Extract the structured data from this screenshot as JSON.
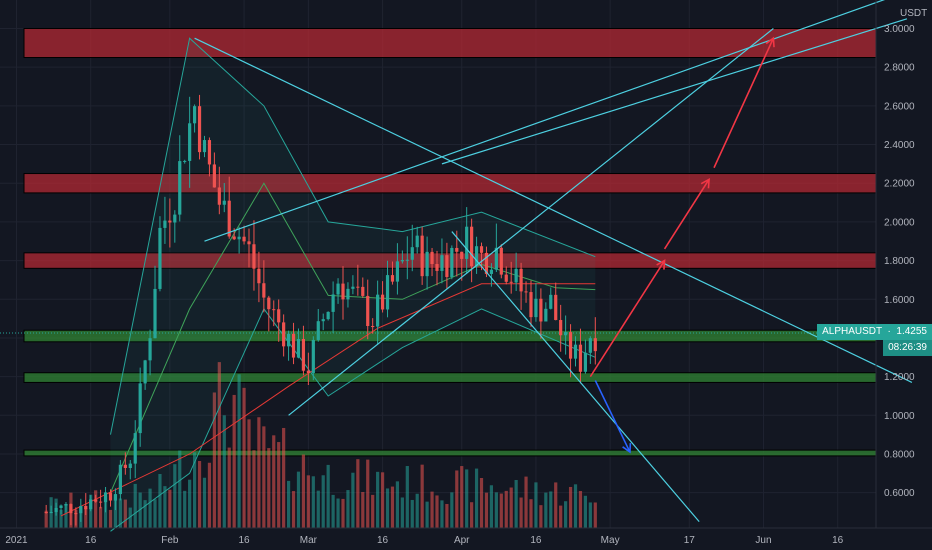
{
  "chart_data": {
    "type": "candlestick",
    "symbol": "ALPHAUSDT",
    "currency": "USDT",
    "last_price": "1.4255",
    "countdown": "08:26:39",
    "x_start": "2021-01-01",
    "y_axis": {
      "min": 0.45,
      "max": 3.1,
      "ticks": [
        "3.0000",
        "2.8000",
        "2.6000",
        "2.4000",
        "2.2000",
        "2.0000",
        "1.8000",
        "1.6000",
        "1.4000",
        "1.2000",
        "1.0000",
        "0.8000",
        "0.6000"
      ]
    },
    "x_ticks": [
      {
        "label": "2021",
        "date": "2021-01-01"
      },
      {
        "label": "16",
        "date": "2021-01-16"
      },
      {
        "label": "Feb",
        "date": "2021-02-01"
      },
      {
        "label": "16",
        "date": "2021-02-16"
      },
      {
        "label": "Mar",
        "date": "2021-03-01"
      },
      {
        "label": "16",
        "date": "2021-03-16"
      },
      {
        "label": "Apr",
        "date": "2021-04-01"
      },
      {
        "label": "16",
        "date": "2021-04-16"
      },
      {
        "label": "May",
        "date": "2021-05-01"
      },
      {
        "label": "17",
        "date": "2021-05-17"
      },
      {
        "label": "Jun",
        "date": "2021-06-01"
      },
      {
        "label": "16",
        "date": "2021-06-16"
      }
    ],
    "price_path": [
      [
        "2021-01-07",
        0.5
      ],
      [
        "2021-01-14",
        0.54
      ],
      [
        "2021-01-20",
        0.6
      ],
      [
        "2021-01-24",
        0.78
      ],
      [
        "2021-01-26",
        1.1
      ],
      [
        "2021-01-28",
        1.45
      ],
      [
        "2021-01-30",
        1.95
      ],
      [
        "2021-02-02",
        2.15
      ],
      [
        "2021-02-04",
        2.4
      ],
      [
        "2021-02-06",
        2.6
      ],
      [
        "2021-02-08",
        2.35
      ],
      [
        "2021-02-11",
        2.1
      ],
      [
        "2021-02-14",
        1.98
      ],
      [
        "2021-02-17",
        1.85
      ],
      [
        "2021-02-20",
        1.6
      ],
      [
        "2021-02-23",
        1.48
      ],
      [
        "2021-02-26",
        1.35
      ],
      [
        "2021-03-01",
        1.25
      ],
      [
        "2021-03-04",
        1.5
      ],
      [
        "2021-03-07",
        1.7
      ],
      [
        "2021-03-10",
        1.62
      ],
      [
        "2021-03-14",
        1.5
      ],
      [
        "2021-03-18",
        1.68
      ],
      [
        "2021-03-22",
        1.88
      ],
      [
        "2021-03-25",
        1.78
      ],
      [
        "2021-03-29",
        1.82
      ],
      [
        "2021-04-02",
        1.9
      ],
      [
        "2021-04-05",
        1.82
      ],
      [
        "2021-04-08",
        1.86
      ],
      [
        "2021-04-12",
        1.68
      ],
      [
        "2021-04-16",
        1.55
      ],
      [
        "2021-04-19",
        1.58
      ],
      [
        "2021-04-22",
        1.35
      ],
      [
        "2021-04-25",
        1.28
      ],
      [
        "2021-04-27",
        1.42
      ]
    ],
    "bollinger_mid": [
      [
        "2021-01-20",
        0.6
      ],
      [
        "2021-02-05",
        1.55
      ],
      [
        "2021-02-20",
        2.2
      ],
      [
        "2021-03-05",
        1.62
      ],
      [
        "2021-03-20",
        1.6
      ],
      [
        "2021-04-05",
        1.78
      ],
      [
        "2021-04-20",
        1.66
      ],
      [
        "2021-04-28",
        1.65
      ]
    ],
    "bollinger_upper": [
      [
        "2021-01-20",
        0.9
      ],
      [
        "2021-02-05",
        2.95
      ],
      [
        "2021-02-20",
        2.6
      ],
      [
        "2021-03-05",
        2.0
      ],
      [
        "2021-03-20",
        1.95
      ],
      [
        "2021-04-05",
        2.05
      ],
      [
        "2021-04-28",
        1.82
      ]
    ],
    "bollinger_lower": [
      [
        "2021-01-20",
        0.4
      ],
      [
        "2021-02-05",
        0.7
      ],
      [
        "2021-02-20",
        1.55
      ],
      [
        "2021-03-05",
        1.1
      ],
      [
        "2021-03-20",
        1.35
      ],
      [
        "2021-04-05",
        1.55
      ],
      [
        "2021-04-28",
        1.3
      ]
    ],
    "moving_average": [
      [
        "2021-01-10",
        0.48
      ],
      [
        "2021-02-05",
        0.8
      ],
      [
        "2021-02-25",
        1.15
      ],
      [
        "2021-03-15",
        1.45
      ],
      [
        "2021-04-05",
        1.68
      ],
      [
        "2021-04-28",
        1.68
      ]
    ],
    "resistance_zones": [
      [
        2.85,
        3.0
      ],
      [
        2.15,
        2.25
      ],
      [
        1.76,
        1.84
      ]
    ],
    "support_zones": [
      [
        1.38,
        1.44
      ],
      [
        1.17,
        1.22
      ],
      [
        0.79,
        0.82
      ]
    ],
    "trendlines": [
      {
        "from": [
          "2021-02-06",
          2.95
        ],
        "to": [
          "2021-07-01",
          1.17
        ]
      },
      {
        "from": [
          "2021-02-08",
          1.9
        ],
        "to": [
          "2021-07-01",
          3.2
        ]
      },
      {
        "from": [
          "2021-02-25",
          1.0
        ],
        "to": [
          "2021-06-03",
          3.0
        ]
      },
      {
        "from": [
          "2021-03-28",
          2.3
        ],
        "to": [
          "2021-06-30",
          3.05
        ]
      },
      {
        "from": [
          "2021-03-30",
          1.95
        ],
        "to": [
          "2021-05-19",
          0.45
        ]
      }
    ],
    "projection_arrows": [
      {
        "color": "#f23645",
        "from": [
          "2021-04-27",
          1.2
        ],
        "to": [
          "2021-05-12",
          1.8
        ]
      },
      {
        "color": "#f23645",
        "from": [
          "2021-05-12",
          1.86
        ],
        "to": [
          "2021-05-21",
          2.22
        ]
      },
      {
        "color": "#f23645",
        "from": [
          "2021-05-22",
          2.28
        ],
        "to": [
          "2021-06-03",
          2.95
        ]
      },
      {
        "color": "#2962ff",
        "from": [
          "2021-04-28",
          1.18
        ],
        "to": [
          "2021-05-05",
          0.81
        ]
      }
    ],
    "volume_shape": [
      [
        0,
        0.15
      ],
      [
        0.2,
        0.22
      ],
      [
        0.28,
        0.55
      ],
      [
        0.33,
        0.9
      ],
      [
        0.38,
        0.55
      ],
      [
        0.5,
        0.35
      ],
      [
        0.65,
        0.3
      ],
      [
        0.8,
        0.28
      ],
      [
        1,
        0.22
      ]
    ]
  },
  "colors": {
    "background": "#131722",
    "grid": "#1f2330",
    "up": "#26a69a",
    "down": "#ef5350",
    "resistance": "#b22833",
    "support": "#2e7d32",
    "trend": "#4dd0e1",
    "bb": "#26a69a",
    "ma": "#e53935"
  }
}
